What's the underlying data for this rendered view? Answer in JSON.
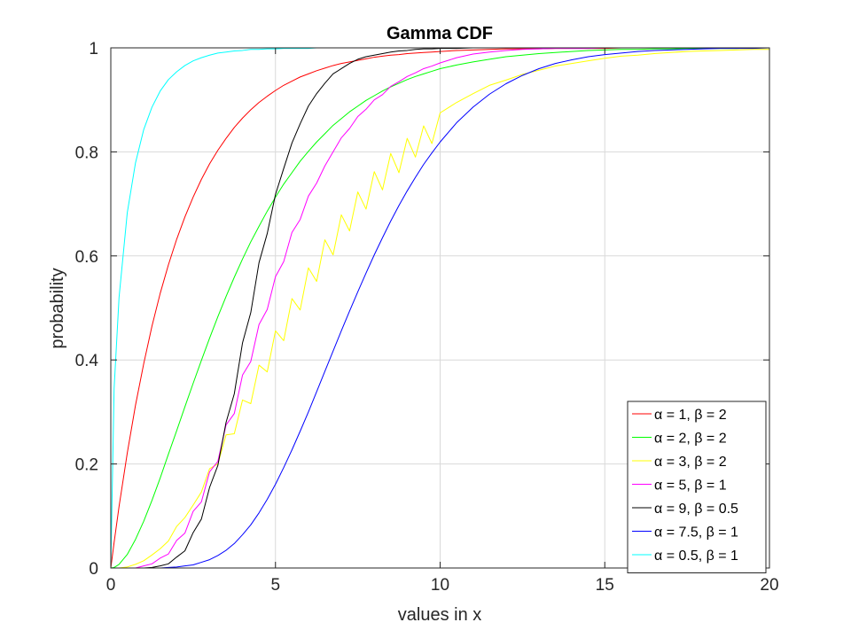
{
  "chart_data": {
    "type": "line",
    "title": "Gamma CDF",
    "xlabel": "values in x",
    "ylabel": "probability",
    "xlim": [
      0,
      20
    ],
    "ylim": [
      0,
      1
    ],
    "xticks": [
      0,
      5,
      10,
      15,
      20
    ],
    "yticks": [
      0,
      0.2,
      0.4,
      0.6,
      0.8,
      1
    ],
    "xtick_labels": [
      "0",
      "5",
      "10",
      "15",
      "20"
    ],
    "ytick_labels": [
      "0",
      "0.2",
      "0.4",
      "0.6",
      "0.8",
      "1"
    ],
    "grid": true,
    "legend_position": "bottom-right",
    "x": [
      0,
      0.1,
      0.25,
      0.5,
      0.75,
      1,
      1.25,
      1.5,
      1.75,
      2,
      2.25,
      2.5,
      2.75,
      3,
      3.25,
      3.5,
      3.75,
      4,
      4.25,
      4.5,
      4.75,
      5,
      5.25,
      5.5,
      5.75,
      6,
      6.25,
      6.5,
      6.75,
      7,
      7.25,
      7.5,
      7.75,
      8,
      8.25,
      8.5,
      8.75,
      9,
      9.25,
      9.5,
      9.75,
      10,
      10.5,
      11,
      11.5,
      12,
      12.5,
      13,
      13.5,
      14,
      14.5,
      15,
      15.5,
      16,
      16.5,
      17,
      17.5,
      18,
      18.5,
      19,
      19.5,
      20
    ],
    "series": [
      {
        "name": "α = 1, β = 2",
        "color": "#ff0000",
        "values": [
          0,
          0.049,
          0.118,
          0.221,
          0.313,
          0.393,
          0.465,
          0.528,
          0.583,
          0.632,
          0.675,
          0.713,
          0.747,
          0.777,
          0.803,
          0.826,
          0.847,
          0.865,
          0.881,
          0.895,
          0.907,
          0.918,
          0.928,
          0.936,
          0.944,
          0.95,
          0.956,
          0.961,
          0.966,
          0.97,
          0.973,
          0.976,
          0.979,
          0.982,
          0.984,
          0.986,
          0.987,
          0.989,
          0.99,
          0.991,
          0.992,
          0.993,
          0.995,
          0.996,
          0.997,
          0.998,
          0.998,
          0.998,
          0.999,
          0.999,
          0.999,
          0.999,
          1.0,
          1.0,
          1.0,
          1.0,
          1.0,
          1.0,
          1.0,
          1.0,
          1.0,
          1.0
        ]
      },
      {
        "name": "α = 2, β = 2",
        "color": "#00ff00",
        "values": [
          0,
          0.001,
          0.007,
          0.026,
          0.055,
          0.09,
          0.13,
          0.173,
          0.219,
          0.264,
          0.31,
          0.355,
          0.399,
          0.442,
          0.483,
          0.522,
          0.559,
          0.594,
          0.627,
          0.657,
          0.686,
          0.713,
          0.738,
          0.76,
          0.782,
          0.801,
          0.819,
          0.835,
          0.851,
          0.864,
          0.877,
          0.888,
          0.899,
          0.908,
          0.917,
          0.925,
          0.932,
          0.939,
          0.945,
          0.95,
          0.955,
          0.96,
          0.967,
          0.973,
          0.978,
          0.983,
          0.986,
          0.989,
          0.991,
          0.993,
          0.995,
          0.996,
          0.997,
          0.997,
          0.998,
          0.998,
          0.999,
          0.999,
          0.999,
          0.999,
          1.0,
          1.0
        ]
      },
      {
        "name": "α = 3, β = 2",
        "color": "#ffff00",
        "values": [
          0,
          0.0,
          0.0,
          0.002,
          0.007,
          0.014,
          0.025,
          0.037,
          0.052,
          0.08,
          0.097,
          0.121,
          0.146,
          0.191,
          0.2,
          0.256,
          0.258,
          0.323,
          0.316,
          0.39,
          0.377,
          0.456,
          0.437,
          0.518,
          0.496,
          0.577,
          0.551,
          0.631,
          0.602,
          0.679,
          0.648,
          0.723,
          0.69,
          0.762,
          0.727,
          0.797,
          0.76,
          0.826,
          0.79,
          0.85,
          0.816,
          0.875,
          0.895,
          0.912,
          0.928,
          0.938,
          0.949,
          0.957,
          0.965,
          0.97,
          0.975,
          0.98,
          0.984,
          0.986,
          0.989,
          0.991,
          0.993,
          0.994,
          0.995,
          0.996,
          0.997,
          0.997
        ]
      },
      {
        "name": "α = 5, β = 1",
        "color": "#ff00ff",
        "values": [
          0,
          0.0,
          0.0,
          0.0,
          0.0,
          0.004,
          0.008,
          0.019,
          0.027,
          0.053,
          0.067,
          0.109,
          0.127,
          0.185,
          0.205,
          0.275,
          0.297,
          0.371,
          0.397,
          0.468,
          0.497,
          0.56,
          0.589,
          0.645,
          0.67,
          0.715,
          0.74,
          0.773,
          0.8,
          0.827,
          0.845,
          0.868,
          0.882,
          0.9,
          0.91,
          0.926,
          0.935,
          0.945,
          0.952,
          0.96,
          0.965,
          0.971,
          0.981,
          0.988,
          0.992,
          0.995,
          0.997,
          0.998,
          0.999,
          0.999,
          0.999,
          1.0,
          1.0,
          1.0,
          1.0,
          1.0,
          1.0,
          1.0,
          1.0,
          1.0,
          1.0,
          1.0
        ]
      },
      {
        "name": "α = 9, β = 0.5",
        "color": "#000000",
        "values": [
          0,
          0.0,
          0.0,
          0.0,
          0.0,
          0.0,
          0.001,
          0.004,
          0.008,
          0.021,
          0.033,
          0.068,
          0.094,
          0.155,
          0.197,
          0.28,
          0.335,
          0.433,
          0.491,
          0.587,
          0.643,
          0.718,
          0.768,
          0.817,
          0.854,
          0.888,
          0.912,
          0.932,
          0.95,
          0.96,
          0.97,
          0.978,
          0.983,
          0.986,
          0.989,
          0.992,
          0.994,
          0.995,
          0.997,
          0.998,
          0.998,
          0.999,
          0.999,
          1.0,
          1.0,
          1.0,
          1.0,
          1.0,
          1.0,
          1.0,
          1.0,
          1.0,
          1.0,
          1.0,
          1.0,
          1.0,
          1.0,
          1.0,
          1.0,
          1.0,
          1.0,
          1.0
        ]
      },
      {
        "name": "α = 7.5, β = 1",
        "color": "#0000ff",
        "values": [
          0,
          0.0,
          0.0,
          0.0,
          0.0,
          0.0,
          0.0,
          0.0,
          0.001,
          0.002,
          0.004,
          0.006,
          0.011,
          0.016,
          0.024,
          0.034,
          0.047,
          0.064,
          0.083,
          0.106,
          0.132,
          0.161,
          0.193,
          0.227,
          0.263,
          0.3,
          0.339,
          0.378,
          0.417,
          0.456,
          0.494,
          0.531,
          0.567,
          0.602,
          0.635,
          0.667,
          0.697,
          0.725,
          0.751,
          0.776,
          0.798,
          0.819,
          0.856,
          0.886,
          0.911,
          0.931,
          0.947,
          0.96,
          0.97,
          0.977,
          0.983,
          0.987,
          0.99,
          0.993,
          0.995,
          0.996,
          0.997,
          0.998,
          0.999,
          0.999,
          0.999,
          1.0
        ]
      },
      {
        "name": "α = 0.5, β = 1",
        "color": "#00ffff",
        "values": [
          0,
          0.345,
          0.52,
          0.683,
          0.779,
          0.843,
          0.886,
          0.917,
          0.939,
          0.954,
          0.966,
          0.975,
          0.981,
          0.986,
          0.99,
          0.992,
          0.994,
          0.995,
          0.997,
          0.997,
          0.998,
          0.998,
          0.999,
          0.999,
          0.999,
          0.999,
          1.0,
          1.0,
          1.0,
          1.0,
          1.0,
          1.0,
          1.0,
          1.0,
          1.0,
          1.0,
          1.0,
          1.0,
          1.0,
          1.0,
          1.0,
          1.0,
          1.0,
          1.0,
          1.0,
          1.0,
          1.0,
          1.0,
          1.0,
          1.0,
          1.0,
          1.0,
          1.0,
          1.0,
          1.0,
          1.0,
          1.0,
          1.0,
          1.0,
          1.0,
          1.0,
          1.0
        ]
      }
    ]
  }
}
